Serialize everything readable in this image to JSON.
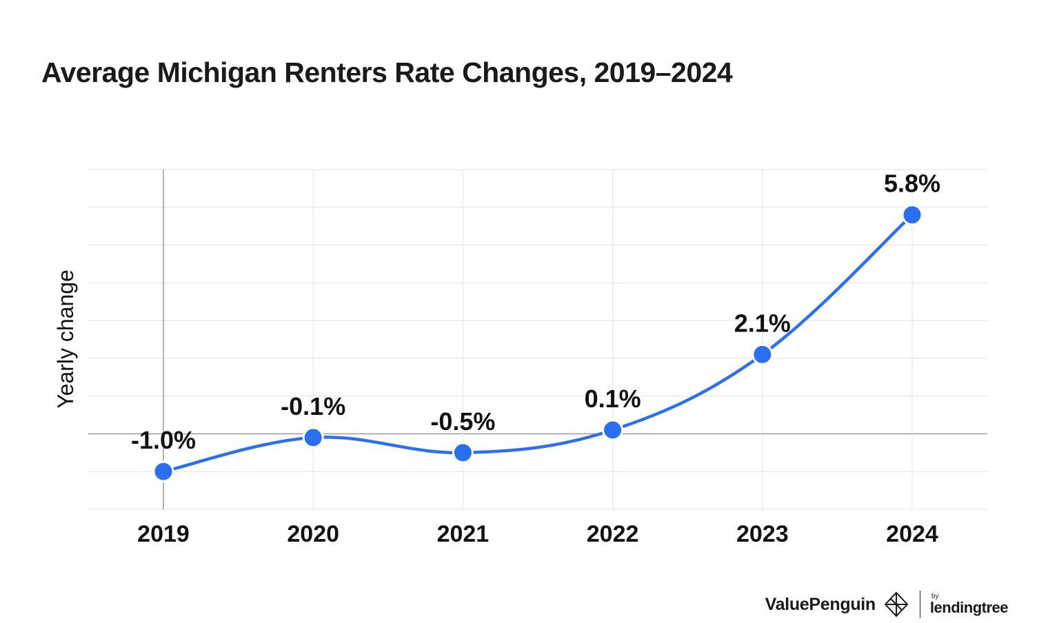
{
  "chart_data": {
    "type": "line",
    "title": "Average Michigan Renters Rate Changes, 2019–2024",
    "xlabel": "",
    "ylabel": "Yearly change",
    "categories": [
      "2019",
      "2020",
      "2021",
      "2022",
      "2023",
      "2024"
    ],
    "series": [
      {
        "name": "Yearly change",
        "values": [
          -1.0,
          -0.1,
          -0.5,
          0.1,
          2.1,
          5.8
        ],
        "labels": [
          "-1.0%",
          "-0.1%",
          "-0.5%",
          "0.1%",
          "2.1%",
          "5.8%"
        ],
        "color": "#2a6ff0"
      }
    ],
    "ylim": [
      -2,
      7
    ],
    "grid": true
  },
  "footer": {
    "brand": "ValuePenguin",
    "by": "by",
    "partner": "lendingtree"
  }
}
